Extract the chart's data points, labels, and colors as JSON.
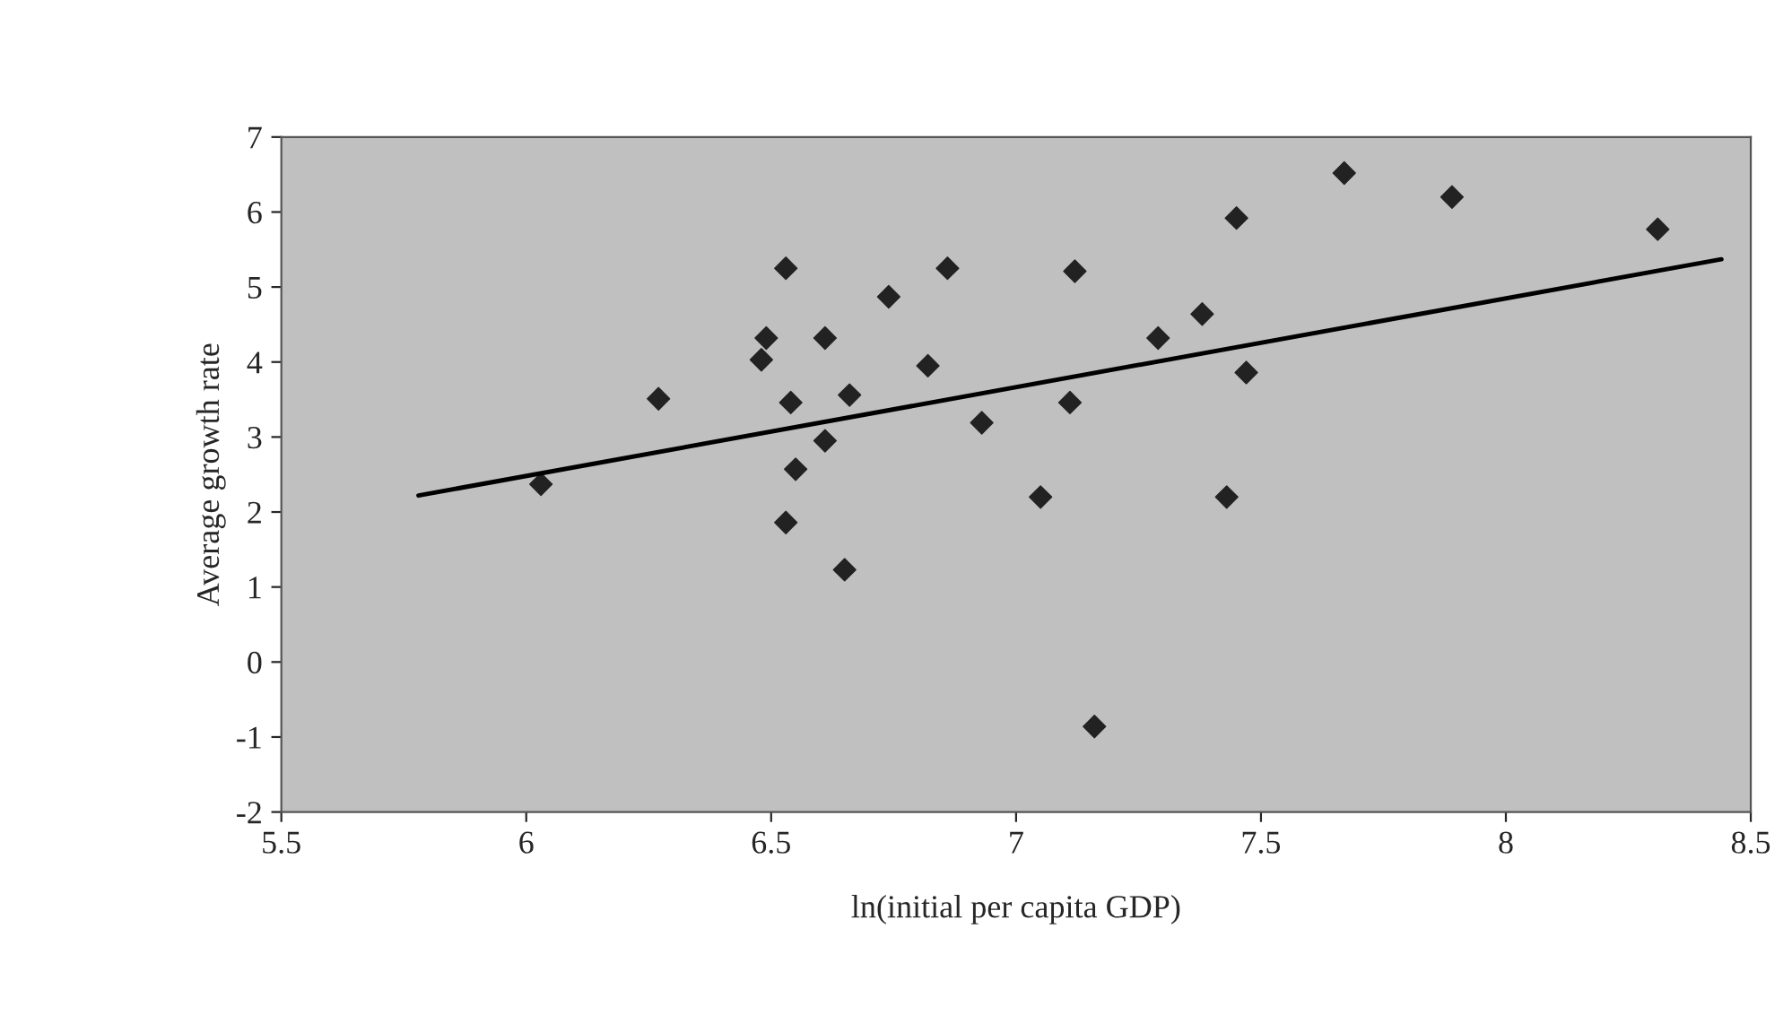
{
  "chart_data": {
    "type": "scatter",
    "xlabel": "ln(initial per capita GDP)",
    "ylabel": "Average growth rate",
    "xlim": [
      5.5,
      8.5
    ],
    "xticks": [
      5.5,
      6,
      6.5,
      7,
      7.5,
      8,
      8.5
    ],
    "ylim": [
      -2,
      7
    ],
    "yticks": [
      -2,
      -1,
      0,
      1,
      2,
      3,
      4,
      5,
      6,
      7
    ],
    "grid": false,
    "series": [
      {
        "marker": "diamond",
        "color": "#222222",
        "x": [
          6.03,
          6.27,
          6.48,
          6.49,
          6.53,
          6.54,
          6.55,
          6.53,
          6.61,
          6.61,
          6.66,
          6.74,
          6.65,
          6.82,
          6.86,
          6.93,
          7.12,
          7.05,
          7.11,
          7.16,
          7.29,
          7.38,
          7.45,
          7.47,
          7.43,
          7.67,
          7.89,
          8.31
        ],
        "values": [
          2.37,
          3.51,
          4.03,
          4.32,
          5.25,
          3.46,
          2.57,
          1.86,
          4.32,
          2.95,
          3.56,
          4.87,
          1.23,
          3.95,
          5.25,
          3.19,
          5.21,
          2.2,
          3.46,
          -0.86,
          4.32,
          4.64,
          5.92,
          3.86,
          2.2,
          6.52,
          6.2,
          5.77
        ]
      },
      {
        "type": "line",
        "color": "#000000",
        "line_style": "solid",
        "marker": "none",
        "x": [
          5.78,
          8.44
        ],
        "values": [
          2.22,
          5.37
        ]
      }
    ]
  }
}
